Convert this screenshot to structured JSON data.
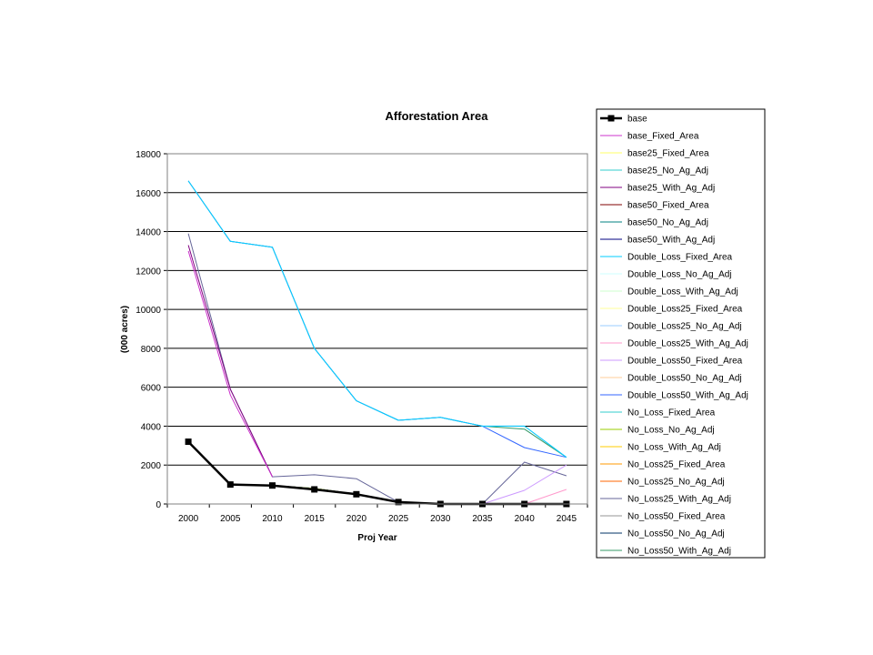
{
  "chart_data": {
    "type": "line",
    "title": "Afforestation Area",
    "xlabel": "Proj Year",
    "ylabel": "(000 acres)",
    "categories": [
      "2000",
      "2005",
      "2010",
      "2015",
      "2020",
      "2025",
      "2030",
      "2035",
      "2040",
      "2045"
    ],
    "ylim": [
      0,
      18000
    ],
    "yticks": [
      0,
      2000,
      4000,
      6000,
      8000,
      10000,
      12000,
      14000,
      16000,
      18000
    ],
    "grid": true,
    "legend_position": "right",
    "series": [
      {
        "name": "base",
        "color": "#000000",
        "marker": "square",
        "values": [
          3200,
          1000,
          950,
          750,
          500,
          100,
          0,
          0,
          0,
          0
        ]
      },
      {
        "name": "base_Fixed_Area",
        "color": "#cc33cc",
        "values": [
          13000,
          5600,
          1400,
          null,
          null,
          null,
          null,
          null,
          null,
          null
        ]
      },
      {
        "name": "base25_Fixed_Area",
        "color": "#ffff66",
        "values": [
          3200,
          1000,
          950,
          800,
          500,
          100,
          0,
          0,
          0,
          0
        ]
      },
      {
        "name": "base25_No_Ag_Adj",
        "color": "#33cccc",
        "values": [
          3200,
          1000,
          950,
          800,
          500,
          100,
          0,
          0,
          0,
          0
        ]
      },
      {
        "name": "base25_With_Ag_Adj",
        "color": "#800080",
        "values": [
          13300,
          5900,
          1400,
          null,
          null,
          null,
          null,
          null,
          null,
          null
        ]
      },
      {
        "name": "base50_Fixed_Area",
        "color": "#800000",
        "values": [
          3200,
          1000,
          950,
          800,
          500,
          100,
          0,
          0,
          0,
          0
        ]
      },
      {
        "name": "base50_No_Ag_Adj",
        "color": "#008080",
        "values": [
          3200,
          1000,
          950,
          800,
          500,
          100,
          0,
          0,
          0,
          0
        ]
      },
      {
        "name": "base50_With_Ag_Adj",
        "color": "#000080",
        "values": [
          3200,
          1000,
          950,
          800,
          500,
          100,
          0,
          0,
          0,
          0
        ]
      },
      {
        "name": "Double_Loss_Fixed_Area",
        "color": "#00ccff",
        "values": [
          16600,
          13500,
          13200,
          8000,
          5300,
          4300,
          4450,
          4000,
          4000,
          2400
        ]
      },
      {
        "name": "Double_Loss_No_Ag_Adj",
        "color": "#ccffff",
        "values": [
          3200,
          1000,
          950,
          800,
          500,
          100,
          0,
          0,
          0,
          0
        ]
      },
      {
        "name": "Double_Loss_With_Ag_Adj",
        "color": "#ccffcc",
        "values": [
          3200,
          1000,
          950,
          800,
          500,
          100,
          0,
          0,
          0,
          0
        ]
      },
      {
        "name": "Double_Loss25_Fixed_Area",
        "color": "#ffff99",
        "values": [
          3200,
          1000,
          950,
          800,
          500,
          100,
          0,
          0,
          0,
          0
        ]
      },
      {
        "name": "Double_Loss25_No_Ag_Adj",
        "color": "#99ccff",
        "values": [
          16600,
          13500,
          13200,
          8000,
          5300,
          4300,
          4450,
          4000,
          4000,
          2400
        ]
      },
      {
        "name": "Double_Loss25_With_Ag_Adj",
        "color": "#ff99cc",
        "values": [
          0,
          0,
          0,
          0,
          0,
          0,
          0,
          0,
          0,
          750
        ]
      },
      {
        "name": "Double_Loss50_Fixed_Area",
        "color": "#cc99ff",
        "values": [
          0,
          0,
          0,
          0,
          0,
          0,
          0,
          0,
          700,
          2000
        ]
      },
      {
        "name": "Double_Loss50_No_Ag_Adj",
        "color": "#ffcc99",
        "values": [
          3200,
          1000,
          950,
          800,
          500,
          100,
          0,
          0,
          0,
          0
        ]
      },
      {
        "name": "Double_Loss50_With_Ag_Adj",
        "color": "#3366ff",
        "values": [
          16600,
          13500,
          13200,
          8000,
          5300,
          4300,
          4450,
          4000,
          2900,
          2400
        ]
      },
      {
        "name": "No_Loss_Fixed_Area",
        "color": "#33cccc",
        "values": [
          3200,
          1000,
          950,
          800,
          500,
          100,
          0,
          0,
          0,
          0
        ]
      },
      {
        "name": "No_Loss_No_Ag_Adj",
        "color": "#99cc00",
        "values": [
          3200,
          1000,
          950,
          800,
          500,
          100,
          0,
          0,
          0,
          0
        ]
      },
      {
        "name": "No_Loss_With_Ag_Adj",
        "color": "#ffcc00",
        "values": [
          3200,
          1000,
          950,
          800,
          500,
          100,
          0,
          0,
          0,
          0
        ]
      },
      {
        "name": "No_Loss25_Fixed_Area",
        "color": "#ff9900",
        "values": [
          3200,
          1000,
          950,
          800,
          500,
          100,
          0,
          0,
          0,
          0
        ]
      },
      {
        "name": "No_Loss25_No_Ag_Adj",
        "color": "#ff6600",
        "values": [
          3200,
          1000,
          950,
          800,
          500,
          100,
          0,
          0,
          0,
          0
        ]
      },
      {
        "name": "No_Loss25_With_Ag_Adj",
        "color": "#666699",
        "values": [
          13900,
          5900,
          1400,
          1500,
          1300,
          100,
          0,
          0,
          2150,
          1450
        ]
      },
      {
        "name": "No_Loss50_Fixed_Area",
        "color": "#969696",
        "values": [
          3200,
          1000,
          950,
          800,
          500,
          100,
          0,
          0,
          0,
          0
        ]
      },
      {
        "name": "No_Loss50_No_Ag_Adj",
        "color": "#003366",
        "values": [
          3200,
          1000,
          950,
          800,
          500,
          100,
          0,
          0,
          0,
          0
        ]
      },
      {
        "name": "No_Loss50_With_Ag_Adj",
        "color": "#339966",
        "values": [
          16600,
          13500,
          13200,
          8000,
          5300,
          4300,
          4450,
          4000,
          3850,
          2400
        ]
      }
    ]
  }
}
